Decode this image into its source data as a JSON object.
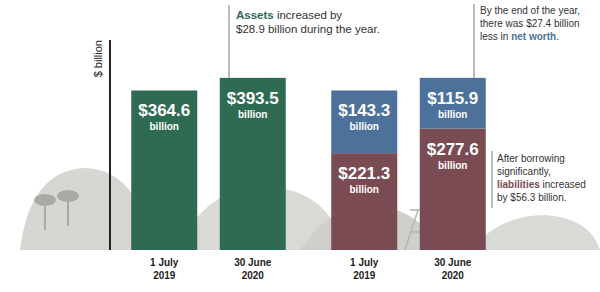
{
  "chart_data": [
    {
      "type": "bar",
      "ylabel": "$ billion",
      "categories": [
        "1 July 2019",
        "30 June 2020"
      ],
      "values": [
        364.6,
        393.5
      ],
      "value_labels": [
        "$364.6 billion",
        "$393.5 billion"
      ],
      "color": "#2f6b52",
      "ylim": [
        0,
        480
      ],
      "yticks": [],
      "tick_labels": "x",
      "data_labels": true,
      "annotations": [
        {
          "lines": [
            [
              {
                "text": "Assets",
                "color": "#2f6b52"
              },
              " increased by"
            ],
            [
              "$28.9 billion during the year."
            ]
          ]
        }
      ]
    },
    {
      "type": "bar",
      "stacked": true,
      "categories": [
        "1 July 2019",
        "30 June 2020"
      ],
      "series": [
        {
          "color": "#7a4b53",
          "values": [
            221.3,
            277.6
          ],
          "value_labels": [
            "$221.3 billion",
            "$277.6 billion"
          ]
        },
        {
          "color": "#4c729b",
          "values": [
            143.3,
            115.9
          ],
          "value_labels": [
            "$143.3 billion",
            "$115.9 billion"
          ]
        }
      ],
      "ylim": [
        0,
        480
      ],
      "yticks": [],
      "tick_labels": "x",
      "data_labels": true,
      "annotations": [
        {
          "lines": [
            [
              "By the end of the year,"
            ],
            [
              "there was $27.4 billion"
            ],
            [
              "less in ",
              {
                "text": "net worth",
                "color": "#4c729b"
              },
              "."
            ]
          ]
        },
        {
          "lines": [
            [
              "After borrowing"
            ],
            [
              "significantly,"
            ],
            [
              {
                "text": "liabilities",
                "color": "#7a4b53"
              },
              " increased"
            ],
            [
              "by $56.3 billion."
            ]
          ]
        }
      ]
    }
  ]
}
